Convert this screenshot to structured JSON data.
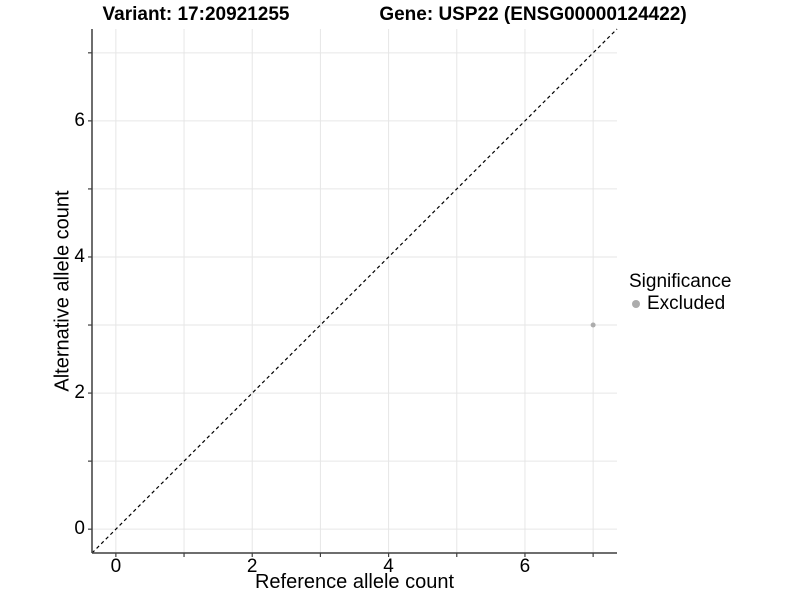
{
  "header": {
    "variant_title": "Variant: 17:20921255",
    "gene_title": "Gene: USP22 (ENSG00000124422)"
  },
  "chart_data": {
    "type": "scatter",
    "xlabel": "Reference allele count",
    "ylabel": "Alternative allele count",
    "xlim": [
      -0.35,
      7.35
    ],
    "ylim": [
      -0.35,
      7.35
    ],
    "grid": true,
    "grid_ticks": [
      0,
      1,
      2,
      3,
      4,
      5,
      6,
      7
    ],
    "labeled_ticks": [
      0,
      2,
      4,
      6
    ],
    "reference_line": {
      "type": "identity",
      "style": "dashed",
      "color": "#000000"
    },
    "series": [
      {
        "name": "Excluded",
        "color": "#acacac",
        "point_radius": 2.5,
        "points": [
          [
            7,
            3
          ]
        ]
      }
    ],
    "legend": {
      "position": "right",
      "title": "Significance",
      "items": [
        {
          "label": "Excluded",
          "color": "#acacac"
        }
      ]
    },
    "colors": {
      "grid": "#e6e6e6",
      "axis": "#3f3f3f",
      "tick": "#3f3f3f",
      "text": "#000000"
    }
  }
}
